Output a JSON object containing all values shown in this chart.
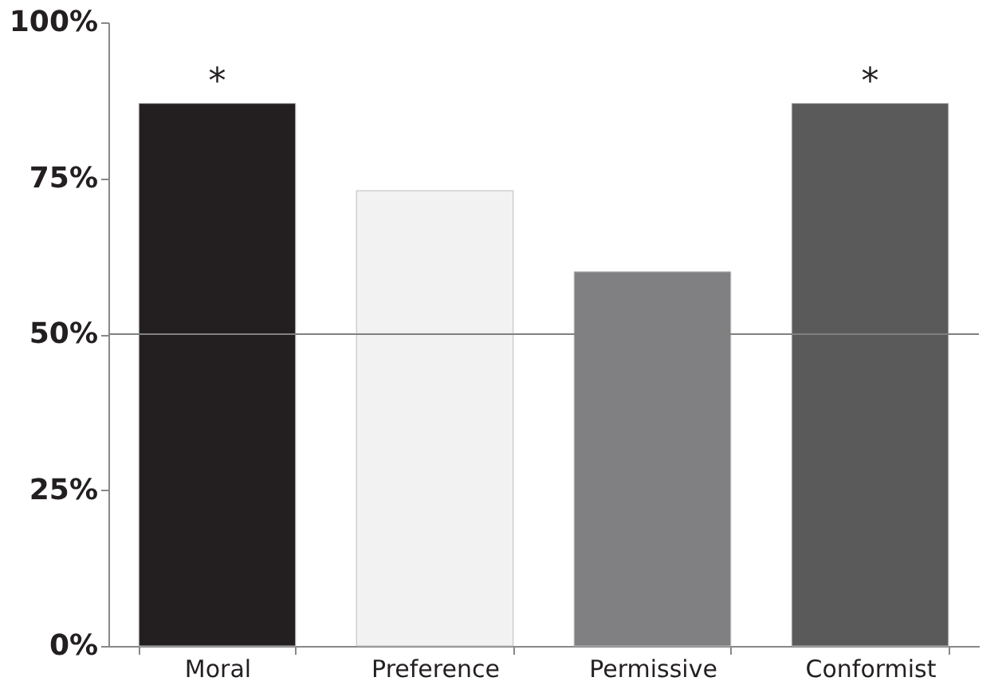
{
  "chart_data": {
    "type": "bar",
    "categories": [
      "Moral",
      "Preference",
      "Permissive",
      "Conformist"
    ],
    "values": [
      87,
      73,
      60,
      87
    ],
    "colors": [
      "#231f20",
      "#f2f2f2",
      "#808082",
      "#5a5a5a"
    ],
    "ylim": [
      0,
      100
    ],
    "yticks": [
      {
        "value": 0,
        "label": "0%"
      },
      {
        "value": 25,
        "label": "25%"
      },
      {
        "value": 50,
        "label": "50%"
      },
      {
        "value": 75,
        "label": "75%"
      },
      {
        "value": 100,
        "label": "100%"
      }
    ],
    "grid": false,
    "ref_lines": [
      {
        "axis": "y",
        "value": 50,
        "color": "#808080"
      }
    ],
    "annotations": [
      {
        "text": "*",
        "x": "Moral",
        "y": 87
      },
      {
        "text": "*",
        "x": "Conformist",
        "y": 87
      }
    ]
  }
}
